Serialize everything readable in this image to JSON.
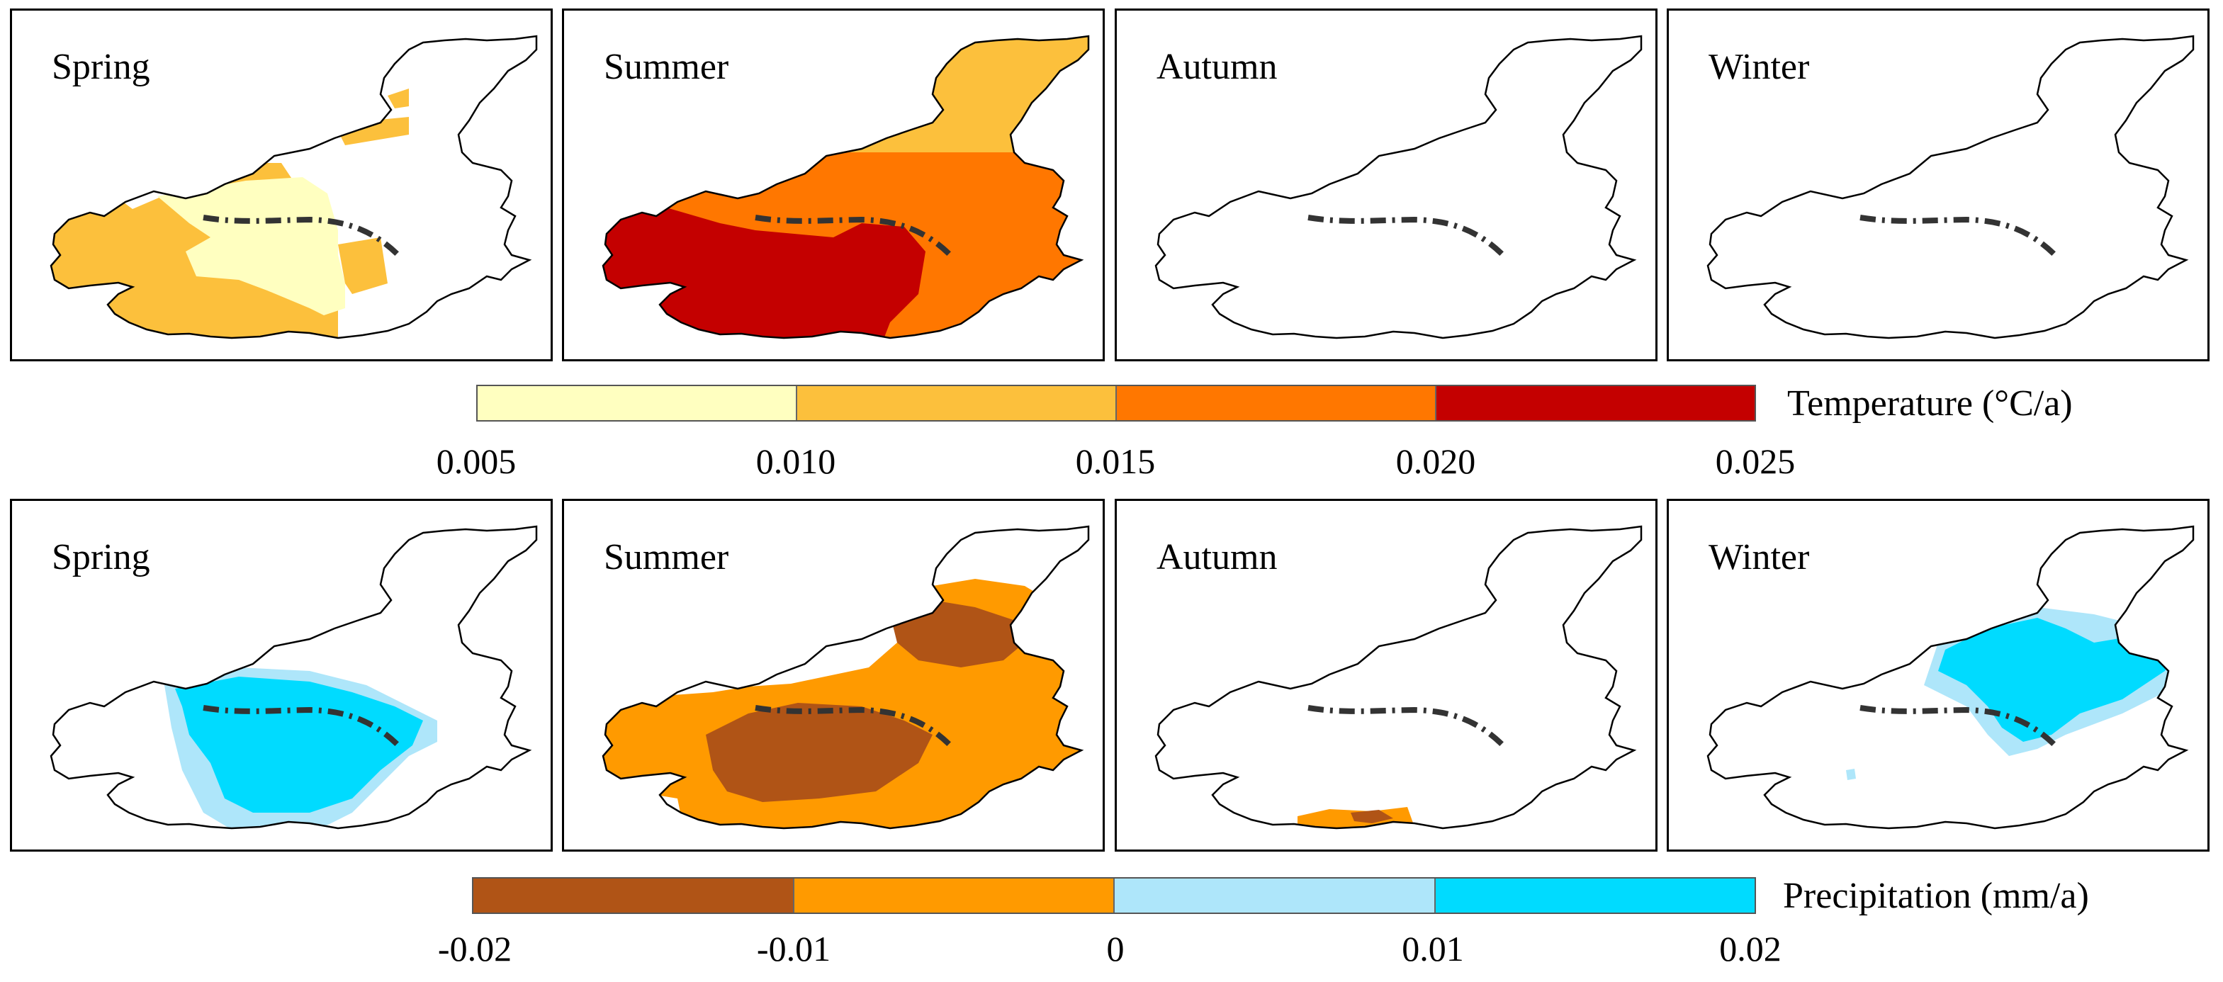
{
  "temperature_row": {
    "panels": [
      {
        "season": "Spring"
      },
      {
        "season": "Summer"
      },
      {
        "season": "Autumn"
      },
      {
        "season": "Winter"
      }
    ],
    "legend": {
      "title": "Temperature (°C/a)",
      "ticks": [
        "0.005",
        "0.010",
        "0.015",
        "0.020",
        "0.025"
      ],
      "classes": [
        {
          "range": "0.005–0.010",
          "color": "#ffffc0"
        },
        {
          "range": "0.010–0.015",
          "color": "#fcc03c"
        },
        {
          "range": "0.015–0.020",
          "color": "#ff7700"
        },
        {
          "range": "0.020–0.025",
          "color": "#c40000"
        }
      ]
    }
  },
  "precipitation_row": {
    "panels": [
      {
        "season": "Spring"
      },
      {
        "season": "Summer"
      },
      {
        "season": "Autumn"
      },
      {
        "season": "Winter"
      }
    ],
    "legend": {
      "title": "Precipitation (mm/a)",
      "ticks": [
        "-0.02",
        "-0.01",
        "0",
        "0.01",
        "0.02"
      ],
      "classes": [
        {
          "range": "-0.02–-0.01",
          "color": "#b05416"
        },
        {
          "range": "-0.01–0",
          "color": "#ff9a00"
        },
        {
          "range": "0–0.01",
          "color": "#aee6fa"
        },
        {
          "range": "0.01–0.02",
          "color": "#00dbff"
        }
      ]
    }
  }
}
